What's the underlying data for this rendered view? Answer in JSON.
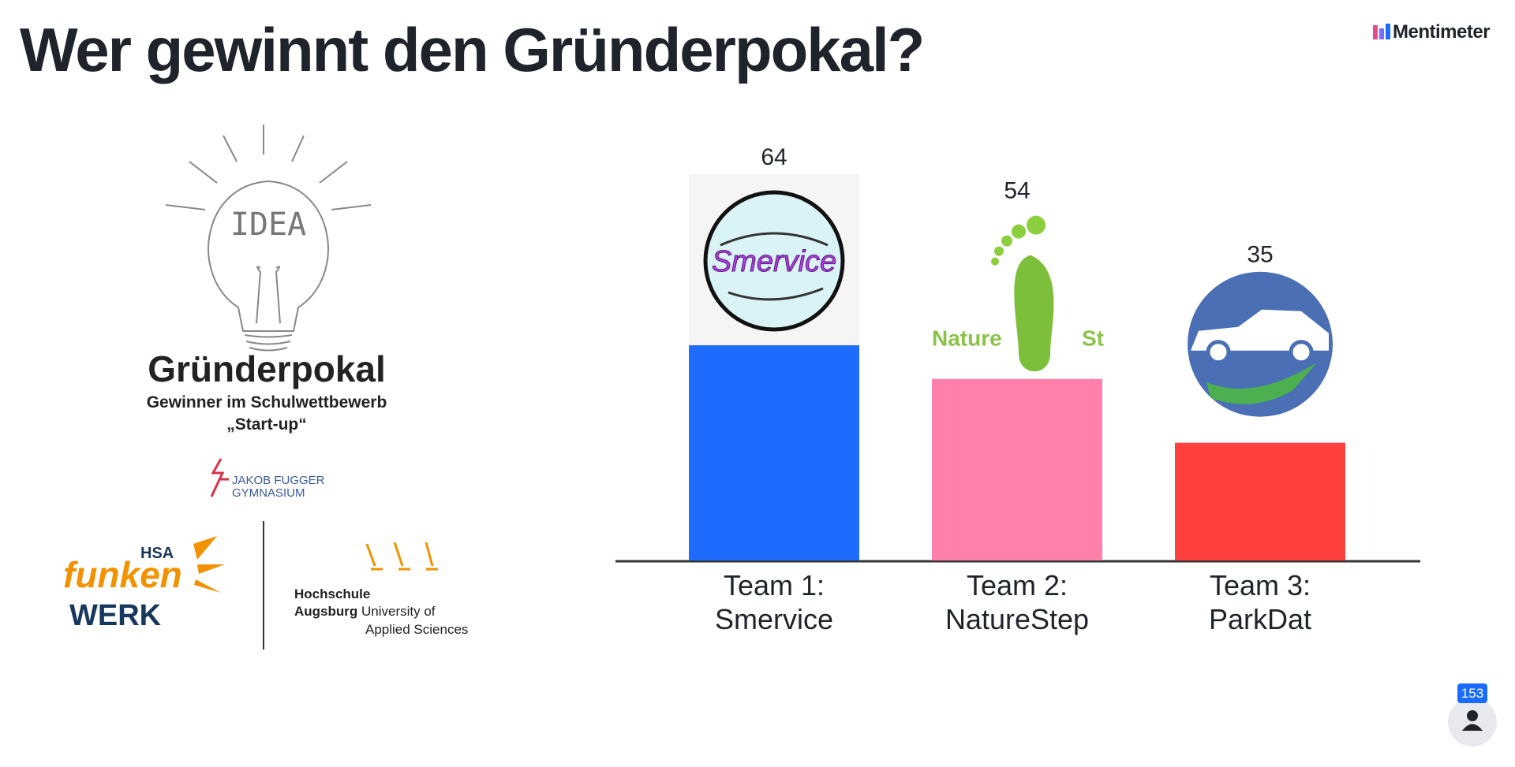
{
  "header": {
    "title": "Wer gewinnt den Gründerpokal?",
    "brand": "Mentimeter"
  },
  "logo": {
    "idea": "IDEA",
    "name": "Gründerpokal",
    "subtitle": "Gewinner im Schulwettbewerb",
    "quote": "„Start-up“",
    "school_1": "JAKOB FUGGER",
    "school_2": "GYMNASIUM",
    "hsa": "HSA",
    "funken": "funken",
    "werk": "WERK",
    "uni_1": "Hochschule",
    "uni_2": "Augsburg",
    "uni_3": "University of",
    "uni_4": "Applied Sciences"
  },
  "chart_data": {
    "type": "bar",
    "categories": [
      "Team 1: Smervice",
      "Team 2: NatureStep",
      "Team 3: ParkDat"
    ],
    "values": [
      64,
      54,
      35
    ],
    "colors": [
      "#1f6bff",
      "#ff80aa",
      "#ff403d"
    ],
    "image_texts": [
      "Smervice",
      "Nature",
      "St"
    ]
  },
  "participants": 153
}
